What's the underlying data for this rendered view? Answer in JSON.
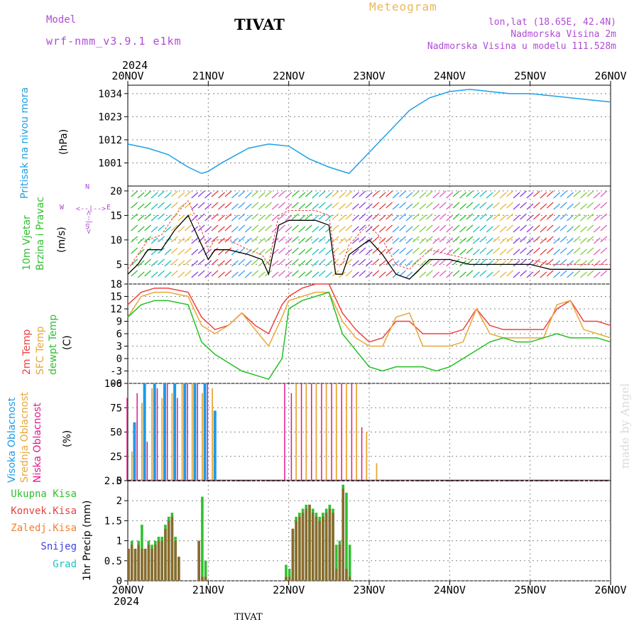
{
  "header": {
    "model_label": "Model",
    "model_name": "wrf-nmm_v3.9.1 e1km",
    "station": "TIVAT",
    "title": "Meteogram",
    "lonlat": "lon,lat (18.65E, 42.4N)",
    "elevation": "Nadmorska Visina 2m",
    "model_elevation": "Nadmorska Visina u modelu 111.528m"
  },
  "time_axis": {
    "year": "2024",
    "dates": [
      "20NOV",
      "21NOV",
      "22NOV",
      "23NOV",
      "24NOV",
      "25NOV",
      "26NOV"
    ]
  },
  "footer": {
    "station": "TIVAT"
  },
  "watermark": "made by Angel",
  "colors": {
    "pressure": "#1ea0e6",
    "wind_black": "#000000",
    "temp2m": "#f04040",
    "sfc_temp": "#e8a838",
    "dewpoint": "#22c022",
    "high_cloud": "#1e9ae6",
    "mid_cloud": "#e8a838",
    "low_cloud": "#e01a8a",
    "total_precip": "#30c030",
    "conv_precip": "#e84040",
    "frz_precip": "#f08030",
    "snow": "#4040e0",
    "hail": "#20c0c0",
    "label_purple": "#b04bd6"
  },
  "panels": {
    "pressure": {
      "ylabel_main": "Pritisak na nivou mora",
      "unit": "(hPa)"
    },
    "wind": {
      "ylabel_main": "10m Vjetar",
      "ylabel_sub": "Brzina i Pravac",
      "unit": "(m/s)",
      "compass": {
        "n": "N",
        "s": "S",
        "e": "E",
        "w": "W",
        "n_side": "<--|-->",
        "e_side": "<--|-->"
      }
    },
    "temperature": {
      "label_2m": "2m Temp",
      "label_sfc": "SFC Temp",
      "label_dew": "dewpt Temp",
      "unit": "(C)"
    },
    "cloud": {
      "label_high": "Visoka Oblacnost",
      "label_mid": "Srednja Oblacnost",
      "label_low": "Niska Oblacnost",
      "unit": "(%)"
    },
    "precip": {
      "legend": [
        "Ukupna Kisa",
        "Konvek.Kisa",
        "Zaledj.Kisa",
        "Snijeg",
        "Grad"
      ],
      "ylabel": "1hr Precip (mm)"
    }
  },
  "chart_data": [
    {
      "type": "line",
      "name": "pressure",
      "x_unit": "hours since 20NOV 00UTC",
      "yticks": [
        1001,
        1012,
        1023,
        1034
      ],
      "ylim": [
        990,
        1038
      ],
      "grid": true,
      "x": [
        0,
        6,
        12,
        18,
        22,
        24,
        28,
        36,
        42,
        48,
        54,
        60,
        66,
        72,
        78,
        84,
        90,
        96,
        102,
        108,
        114,
        120,
        126,
        132,
        138,
        144
      ],
      "values": [
        1010,
        1008,
        1005,
        999,
        996,
        997,
        1001,
        1008,
        1010,
        1009,
        1003,
        999,
        996,
        1006,
        1016,
        1026,
        1032,
        1035,
        1036,
        1035,
        1034,
        1034,
        1033,
        1032,
        1031,
        1030
      ]
    },
    {
      "type": "line",
      "name": "wind",
      "yticks": [
        5,
        10,
        15,
        20
      ],
      "ylim": [
        1,
        21
      ],
      "grid": true,
      "x": [
        0,
        3,
        6,
        10,
        14,
        18,
        22,
        24,
        26,
        30,
        36,
        40,
        42,
        45,
        48,
        52,
        56,
        60,
        62,
        64,
        66,
        70,
        72,
        76,
        80,
        84,
        90,
        96,
        102,
        108,
        114,
        120,
        126,
        132,
        138,
        144
      ],
      "speed": [
        3,
        5,
        8,
        8,
        12,
        15,
        9,
        6,
        8,
        8,
        7,
        6,
        3,
        13,
        14,
        14,
        14,
        13,
        3,
        3,
        7,
        9,
        10,
        7,
        3,
        2,
        6,
        6,
        5,
        5,
        5,
        5,
        4,
        4,
        4,
        4
      ],
      "gust": [
        4,
        7,
        10,
        11,
        15,
        18,
        12,
        8,
        10,
        10,
        8,
        7,
        5,
        15,
        16,
        16,
        16,
        15,
        5,
        5,
        9,
        12,
        13,
        10,
        5,
        4,
        8,
        7,
        6,
        6,
        6,
        6,
        5,
        5,
        5,
        5
      ]
    },
    {
      "type": "line",
      "name": "temperature",
      "yticks": [
        -6,
        -3,
        0,
        3,
        6,
        9,
        12,
        15,
        18
      ],
      "ylim": [
        -6,
        18
      ],
      "grid": true,
      "x": [
        0,
        4,
        8,
        12,
        18,
        22,
        26,
        30,
        34,
        38,
        42,
        46,
        48,
        52,
        56,
        60,
        64,
        68,
        72,
        76,
        80,
        84,
        88,
        92,
        96,
        100,
        104,
        108,
        112,
        116,
        120,
        124,
        128,
        132,
        136,
        140,
        144
      ],
      "series": [
        {
          "key": "t2m",
          "values": [
            13,
            16,
            17,
            17,
            16,
            10,
            7,
            8,
            11,
            8,
            6,
            13,
            15,
            17,
            18,
            18,
            11,
            7,
            4,
            5,
            9,
            9,
            6,
            6,
            6,
            7,
            12,
            8,
            7,
            7,
            7,
            7,
            12,
            14,
            9,
            9,
            8
          ]
        },
        {
          "key": "tsfc",
          "values": [
            10,
            15,
            16,
            16,
            15,
            8,
            6,
            8,
            11,
            7,
            3,
            10,
            14,
            15,
            16,
            16,
            9,
            5,
            3,
            3,
            10,
            11,
            3,
            3,
            3,
            4,
            12,
            6,
            5,
            5,
            5,
            5,
            13,
            14,
            7,
            6,
            5
          ]
        },
        {
          "key": "tdew",
          "values": [
            10,
            13,
            14,
            14,
            13,
            4,
            1,
            -1,
            -3,
            -4,
            -5,
            0,
            12,
            14,
            15,
            16,
            6,
            2,
            -2,
            -3,
            -2,
            -2,
            -2,
            -3,
            -2,
            0,
            2,
            4,
            5,
            4,
            4,
            5,
            6,
            5,
            5,
            5,
            4
          ]
        }
      ]
    },
    {
      "type": "bar",
      "name": "cloud",
      "yticks": [
        0,
        25,
        50,
        75,
        100
      ],
      "ylim": [
        0,
        100
      ],
      "grid": true,
      "series": [
        {
          "key": "low",
          "x": [
            0,
            3,
            6,
            9,
            12,
            15,
            18,
            21,
            24,
            47,
            49,
            52,
            55,
            58,
            61,
            64,
            67,
            70
          ],
          "values": [
            85,
            90,
            40,
            95,
            100,
            85,
            100,
            100,
            100,
            100,
            90,
            100,
            100,
            100,
            100,
            100,
            100,
            55
          ]
        },
        {
          "key": "mid",
          "x": [
            1,
            4,
            7,
            10,
            13,
            16,
            19,
            22,
            25,
            50,
            53,
            56,
            59,
            62,
            65,
            68,
            71,
            74
          ],
          "values": [
            30,
            80,
            95,
            85,
            90,
            100,
            100,
            90,
            95,
            100,
            100,
            100,
            100,
            100,
            100,
            100,
            50,
            18
          ]
        },
        {
          "key": "high",
          "x": [
            2,
            5,
            8,
            11,
            14,
            17,
            20,
            23,
            26
          ],
          "values": [
            60,
            100,
            100,
            100,
            100,
            100,
            100,
            100,
            72
          ]
        }
      ]
    },
    {
      "type": "bar",
      "name": "precip",
      "yticks": [
        0,
        0.5,
        1,
        1.5,
        2,
        2.5
      ],
      "ylim": [
        0,
        2.5
      ],
      "grid": true,
      "x": [
        0,
        1,
        2,
        3,
        4,
        5,
        6,
        7,
        8,
        9,
        10,
        11,
        12,
        13,
        14,
        15,
        16,
        17,
        18,
        19,
        20,
        21,
        22,
        23,
        24,
        25,
        26,
        47,
        48,
        49,
        50,
        51,
        52,
        53,
        54,
        55,
        56,
        57,
        58,
        59,
        60,
        61,
        62,
        63,
        64,
        65,
        66
      ],
      "total": [
        0.8,
        1.0,
        0.8,
        1.0,
        1.4,
        0.8,
        1.0,
        0.9,
        1.0,
        1.1,
        1.1,
        1.4,
        1.6,
        1.7,
        1.1,
        0.6,
        0,
        0,
        0,
        0,
        0,
        1.0,
        2.1,
        0.5,
        0,
        0,
        0,
        0.4,
        0.3,
        1.3,
        1.6,
        1.7,
        1.8,
        1.9,
        1.9,
        1.8,
        1.7,
        1.6,
        1.7,
        1.8,
        1.9,
        1.8,
        0.9,
        1.0,
        2.4,
        2.2,
        0.9
      ],
      "conv": [
        0.8,
        0.9,
        0.8,
        0.9,
        0.8,
        0.8,
        0.9,
        0.8,
        0.9,
        1.0,
        1.0,
        1.3,
        1.5,
        1.6,
        1.0,
        0.6,
        0,
        0,
        0,
        0,
        0,
        1.0,
        0.1,
        0.1,
        0,
        0,
        0,
        0.1,
        0.1,
        1.3,
        1.5,
        1.6,
        1.7,
        1.8,
        1.9,
        1.7,
        1.6,
        1.5,
        1.6,
        1.7,
        1.8,
        1.7,
        0.3,
        0.9,
        2.3,
        0.3,
        0.1
      ]
    }
  ]
}
